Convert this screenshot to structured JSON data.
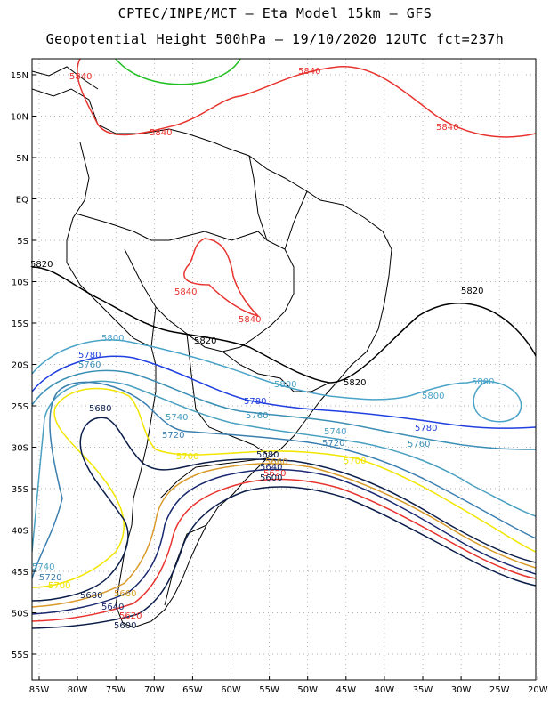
{
  "title_line1": "CPTEC/INPE/MCT –  Eta Model 15km – GFS",
  "title_line2": "Geopotential Height 500hPa – 19/10/2020 12UTC fct=237h",
  "lat_ticks": [
    "15N",
    "10N",
    "5N",
    "EQ",
    "5S",
    "10S",
    "15S",
    "20S",
    "25S",
    "30S",
    "35S",
    "40S",
    "45S",
    "50S",
    "55S"
  ],
  "lon_ticks": [
    "85W",
    "80W",
    "75W",
    "70W",
    "65W",
    "60W",
    "55W",
    "50W",
    "45W",
    "40W",
    "35W",
    "30W",
    "25W",
    "20W"
  ],
  "contour_colors": {
    "5840": "#e8332e",
    "5820": "#000000",
    "5800": "#4aa3c8",
    "5780": "#1f3fe0",
    "5760": "#3b8fb5",
    "5740": "#4aa0c0",
    "5720": "#3a7fb0",
    "5700": "#f2e600",
    "5680": "#0b1e4a",
    "5660": "#d99a2a",
    "5640": "#1a2a70",
    "5620": "#e8332e",
    "5600": "#0b1e4a",
    "green": "#22c022"
  },
  "contour_labels": [
    {
      "text": "5840",
      "color_key": "5840"
    },
    {
      "text": "5820",
      "color_key": "5820"
    },
    {
      "text": "5800",
      "color_key": "5800"
    },
    {
      "text": "5780",
      "color_key": "5780"
    },
    {
      "text": "5760",
      "color_key": "5760"
    },
    {
      "text": "5740",
      "color_key": "5740"
    },
    {
      "text": "5720",
      "color_key": "5720"
    },
    {
      "text": "5700",
      "color_key": "5700"
    },
    {
      "text": "5680",
      "color_key": "5680"
    },
    {
      "text": "5660",
      "color_key": "5660"
    },
    {
      "text": "5640",
      "color_key": "5640"
    },
    {
      "text": "5620",
      "color_key": "5620"
    },
    {
      "text": "5600",
      "color_key": "5600"
    }
  ]
}
